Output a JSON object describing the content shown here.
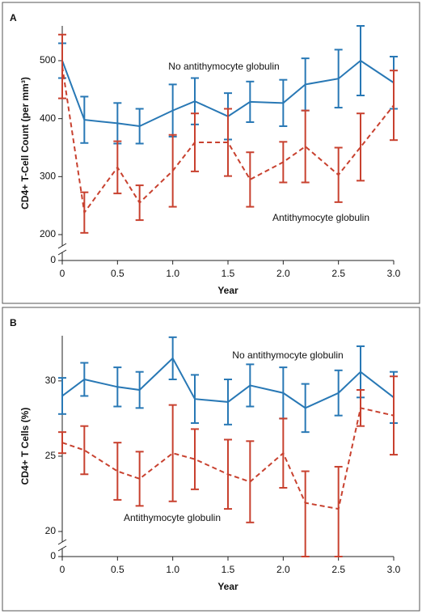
{
  "chart_data": [
    {
      "type": "line",
      "panel": "A",
      "ylabel": "CD4+ T-Cell Count (per mm³)",
      "xlabel": "Year",
      "x": [
        0,
        0.2,
        0.5,
        0.7,
        1.0,
        1.2,
        1.5,
        1.7,
        2.0,
        2.2,
        2.5,
        2.7,
        3.0
      ],
      "xlim": [
        0,
        3
      ],
      "xticks": [
        0,
        0.5,
        {
          "value": 1,
          "label": "1.0"
        },
        1.5,
        {
          "value": 2,
          "label": "2.0"
        },
        2.5,
        {
          "value": 3,
          "label": "3.0"
        }
      ],
      "ylim": [
        200,
        560
      ],
      "yticks": [
        0,
        200,
        300,
        400,
        500
      ],
      "y_axis_break": true,
      "series": [
        {
          "name": "No antithymocyte globulin",
          "color": "#2878b5",
          "line_style": "solid",
          "values": [
            500,
            398,
            392,
            387,
            414,
            430,
            404,
            429,
            427,
            459,
            469,
            500,
            462
          ],
          "errors": [
            30,
            40,
            35,
            30,
            45,
            40,
            40,
            35,
            40,
            45,
            50,
            60,
            45
          ]
        },
        {
          "name": "Antithymocyte globulin",
          "color": "#c8412f",
          "line_style": "dashed",
          "values": [
            490,
            238,
            316,
            255,
            310,
            359,
            359,
            295,
            325,
            352,
            303,
            351,
            423
          ],
          "errors": [
            55,
            35,
            45,
            30,
            62,
            50,
            58,
            47,
            35,
            62,
            47,
            58,
            60
          ]
        }
      ]
    },
    {
      "type": "line",
      "panel": "B",
      "ylabel": "CD4+ T Cells (%)",
      "xlabel": "Year",
      "x": [
        0,
        0.2,
        0.5,
        0.7,
        1.0,
        1.2,
        1.5,
        1.7,
        2.0,
        2.2,
        2.5,
        2.7,
        3.0
      ],
      "xlim": [
        0,
        3
      ],
      "xticks": [
        0,
        0.5,
        {
          "value": 1,
          "label": "1.0"
        },
        1.5,
        {
          "value": 2,
          "label": "2.0"
        },
        2.5,
        {
          "value": 3,
          "label": "3.0"
        }
      ],
      "ylim": [
        20,
        33
      ],
      "yticks": [
        0,
        20,
        25,
        30
      ],
      "y_axis_break": true,
      "series": [
        {
          "name": "No antithymocyte globulin",
          "color": "#2878b5",
          "line_style": "solid",
          "values": [
            29.0,
            30.1,
            29.6,
            29.4,
            31.5,
            28.8,
            28.6,
            29.7,
            29.2,
            28.2,
            29.2,
            30.6,
            28.9
          ],
          "errors": [
            1.2,
            1.1,
            1.3,
            1.2,
            1.4,
            1.6,
            1.5,
            1.4,
            1.7,
            1.6,
            1.5,
            1.7,
            1.7
          ]
        },
        {
          "name": "Antithymocyte globulin",
          "color": "#c8412f",
          "line_style": "dashed",
          "values": [
            25.9,
            25.4,
            24.0,
            23.5,
            25.2,
            24.8,
            23.8,
            23.3,
            25.2,
            21.9,
            21.5,
            28.2,
            27.7
          ],
          "errors": [
            0.7,
            1.6,
            1.9,
            1.8,
            3.2,
            2.0,
            2.3,
            2.7,
            2.3,
            2.1,
            2.8,
            1.2,
            2.6
          ]
        }
      ]
    }
  ]
}
